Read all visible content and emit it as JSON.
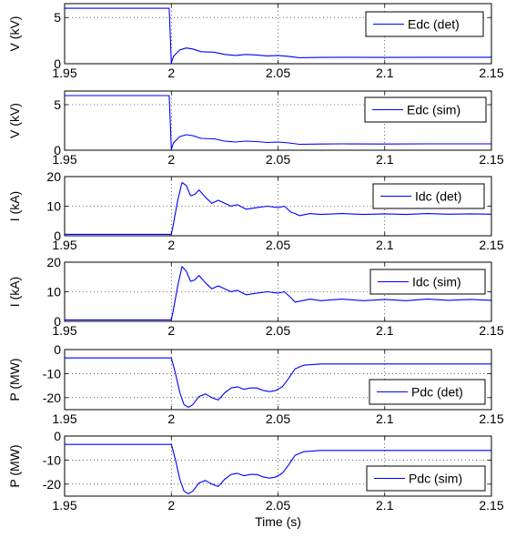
{
  "chart_data": [
    {
      "type": "line",
      "ylabel": "V (kV)",
      "xlim": [
        1.95,
        2.15
      ],
      "ylim": [
        0,
        6.5
      ],
      "xticks": [
        1.95,
        2,
        2.05,
        2.1,
        2.15
      ],
      "yticks": [
        0,
        5
      ],
      "series": [
        {
          "name": "Edc (det)",
          "color": "#0000ff",
          "x": [
            1.95,
            1.999,
            2.0,
            2.001,
            2.004,
            2.007,
            2.01,
            2.014,
            2.02,
            2.025,
            2.03,
            2.035,
            2.04,
            2.045,
            2.05,
            2.055,
            2.06,
            2.07,
            2.08,
            2.1,
            2.12,
            2.15
          ],
          "y": [
            6.0,
            6.0,
            0.1,
            0.8,
            1.5,
            1.7,
            1.6,
            1.3,
            1.25,
            1.0,
            0.9,
            1.0,
            0.95,
            0.85,
            0.9,
            0.8,
            0.65,
            0.68,
            0.7,
            0.68,
            0.7,
            0.7
          ]
        }
      ]
    },
    {
      "type": "line",
      "ylabel": "V (kV)",
      "xlim": [
        1.95,
        2.15
      ],
      "ylim": [
        0,
        6.5
      ],
      "xticks": [
        1.95,
        2,
        2.05,
        2.1,
        2.15
      ],
      "yticks": [
        0,
        5
      ],
      "series": [
        {
          "name": "Edc (sim)",
          "color": "#0000ff",
          "x": [
            1.95,
            1.999,
            2.0,
            2.001,
            2.004,
            2.007,
            2.01,
            2.014,
            2.02,
            2.025,
            2.03,
            2.035,
            2.04,
            2.045,
            2.05,
            2.055,
            2.06,
            2.07,
            2.08,
            2.1,
            2.12,
            2.15
          ],
          "y": [
            6.0,
            6.0,
            0.1,
            0.8,
            1.5,
            1.7,
            1.6,
            1.3,
            1.25,
            1.0,
            0.9,
            1.0,
            0.95,
            0.85,
            0.9,
            0.8,
            0.65,
            0.68,
            0.7,
            0.68,
            0.7,
            0.7
          ]
        }
      ]
    },
    {
      "type": "line",
      "ylabel": "I (kA)",
      "xlim": [
        1.95,
        2.15
      ],
      "ylim": [
        0,
        20
      ],
      "xticks": [
        1.95,
        2,
        2.05,
        2.1,
        2.15
      ],
      "yticks": [
        0,
        10,
        20
      ],
      "series": [
        {
          "name": "Idc (det)",
          "color": "#0000ff",
          "x": [
            1.95,
            2.0,
            2.001,
            2.003,
            2.005,
            2.007,
            2.009,
            2.011,
            2.013,
            2.016,
            2.019,
            2.022,
            2.025,
            2.028,
            2.031,
            2.035,
            2.04,
            2.045,
            2.05,
            2.053,
            2.056,
            2.058,
            2.06,
            2.065,
            2.07,
            2.08,
            2.09,
            2.1,
            2.11,
            2.12,
            2.13,
            2.14,
            2.15
          ],
          "y": [
            0.5,
            0.5,
            4.0,
            12.0,
            18.0,
            17.0,
            13.5,
            14.0,
            15.5,
            13.0,
            11.0,
            12.0,
            11.0,
            10.0,
            10.5,
            9.0,
            9.5,
            10.0,
            9.5,
            10.0,
            8.0,
            7.5,
            6.8,
            7.5,
            7.2,
            7.5,
            7.2,
            7.4,
            7.2,
            7.5,
            7.3,
            7.4,
            7.3
          ]
        }
      ]
    },
    {
      "type": "line",
      "ylabel": "I (kA)",
      "xlim": [
        1.95,
        2.15
      ],
      "ylim": [
        0,
        20
      ],
      "xticks": [
        1.95,
        2,
        2.05,
        2.1,
        2.15
      ],
      "yticks": [
        0,
        10,
        20
      ],
      "series": [
        {
          "name": "Idc (sim)",
          "color": "#0000ff",
          "x": [
            1.95,
            2.0,
            2.001,
            2.003,
            2.005,
            2.007,
            2.009,
            2.011,
            2.013,
            2.016,
            2.019,
            2.022,
            2.025,
            2.028,
            2.031,
            2.035,
            2.04,
            2.045,
            2.05,
            2.053,
            2.056,
            2.058,
            2.06,
            2.065,
            2.07,
            2.08,
            2.09,
            2.1,
            2.11,
            2.12,
            2.13,
            2.14,
            2.15
          ],
          "y": [
            0.5,
            0.5,
            4.0,
            12.0,
            18.5,
            17.0,
            13.5,
            14.0,
            15.5,
            13.0,
            11.0,
            12.0,
            11.0,
            10.0,
            10.5,
            9.0,
            9.5,
            10.0,
            9.5,
            10.0,
            8.0,
            6.5,
            6.8,
            7.5,
            7.0,
            7.5,
            7.0,
            7.4,
            7.0,
            7.5,
            7.1,
            7.4,
            7.1
          ]
        }
      ]
    },
    {
      "type": "line",
      "ylabel": "P (MW)",
      "xlim": [
        1.95,
        2.15
      ],
      "ylim": [
        -25,
        0
      ],
      "xticks": [
        1.95,
        2,
        2.05,
        2.1,
        2.15
      ],
      "yticks": [
        -20,
        -10,
        0
      ],
      "series": [
        {
          "name": "Pdc (det)",
          "color": "#0000ff",
          "x": [
            1.95,
            2.0,
            2.002,
            2.004,
            2.006,
            2.008,
            2.01,
            2.013,
            2.016,
            2.019,
            2.022,
            2.025,
            2.028,
            2.031,
            2.034,
            2.037,
            2.04,
            2.043,
            2.046,
            2.049,
            2.052,
            2.055,
            2.058,
            2.062,
            2.07,
            2.08,
            2.1,
            2.12,
            2.15
          ],
          "y": [
            -3.5,
            -3.5,
            -10.0,
            -18.0,
            -23.0,
            -24.0,
            -23.0,
            -19.5,
            -18.5,
            -20.0,
            -21.0,
            -18.0,
            -16.0,
            -15.5,
            -16.5,
            -16.0,
            -16.0,
            -17.0,
            -17.5,
            -17.0,
            -15.5,
            -12.0,
            -8.0,
            -6.5,
            -6.0,
            -6.0,
            -6.0,
            -6.0,
            -6.0
          ]
        }
      ]
    },
    {
      "type": "line",
      "ylabel": "P (MW)",
      "xlabel": "Time (s)",
      "xlim": [
        1.95,
        2.15
      ],
      "ylim": [
        -25,
        0
      ],
      "xticks": [
        1.95,
        2,
        2.05,
        2.1,
        2.15
      ],
      "yticks": [
        -20,
        -10,
        0
      ],
      "series": [
        {
          "name": "Pdc (sim)",
          "color": "#0000ff",
          "x": [
            1.95,
            2.0,
            2.002,
            2.004,
            2.006,
            2.008,
            2.01,
            2.013,
            2.016,
            2.019,
            2.022,
            2.025,
            2.028,
            2.031,
            2.034,
            2.037,
            2.04,
            2.043,
            2.046,
            2.049,
            2.052,
            2.055,
            2.058,
            2.062,
            2.07,
            2.08,
            2.1,
            2.12,
            2.15
          ],
          "y": [
            -3.5,
            -3.5,
            -10.0,
            -18.0,
            -23.0,
            -24.0,
            -23.0,
            -19.5,
            -18.5,
            -20.0,
            -21.0,
            -18.0,
            -16.0,
            -15.5,
            -16.5,
            -16.0,
            -16.0,
            -17.0,
            -17.5,
            -17.0,
            -15.5,
            -12.0,
            -8.0,
            -6.5,
            -6.0,
            -6.0,
            -6.0,
            -6.0,
            -6.0
          ]
        }
      ]
    }
  ]
}
